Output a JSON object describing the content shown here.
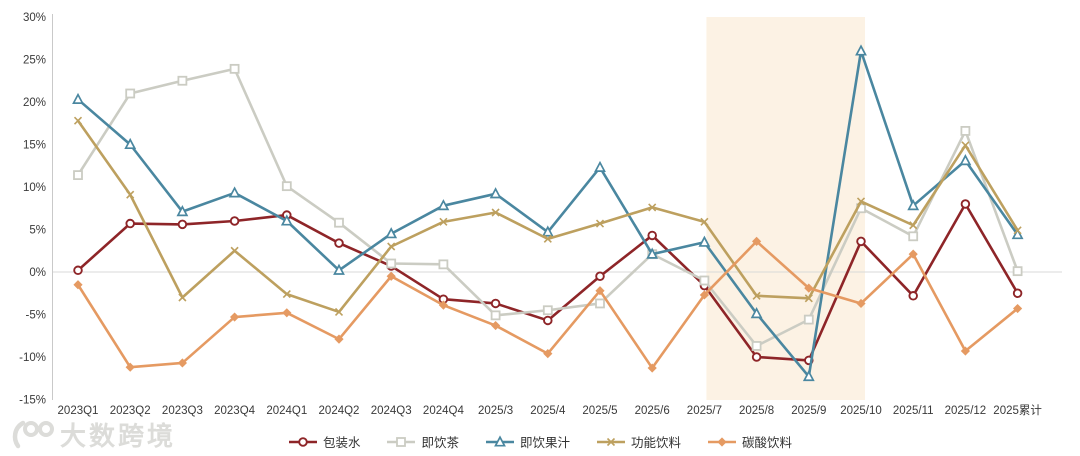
{
  "watermark": {
    "text": "大数跨境"
  },
  "chart_data": {
    "type": "line",
    "title": "",
    "xlabel": "",
    "ylabel": "",
    "grid": "zero-line-only",
    "legend_position": "bottom",
    "categories": [
      "2023Q1",
      "2023Q2",
      "2023Q3",
      "2023Q4",
      "2024Q1",
      "2024Q2",
      "2024Q3",
      "2024Q4",
      "2025/3",
      "2025/4",
      "2025/5",
      "2025/6",
      "2025/7",
      "2025/8",
      "2025/9",
      "2025/10",
      "2025/11",
      "2025/12",
      "2025累计"
    ],
    "y_axis": {
      "min": -15,
      "max": 30,
      "step": 5,
      "ticks": [
        30,
        25,
        20,
        15,
        10,
        5,
        0,
        -5,
        -10,
        -15
      ],
      "tick_suffix": "%"
    },
    "highlight_band": {
      "from": "2025/7",
      "to": "2025/10",
      "color": "#fcf2e4"
    },
    "series": [
      {
        "key": "packaged-water",
        "name": "包装水",
        "color": "#8e2528",
        "marker": "circle",
        "values": [
          0.2,
          5.7,
          5.6,
          6.0,
          6.7,
          3.4,
          0.7,
          -3.2,
          -3.7,
          -5.7,
          -0.5,
          4.3,
          -1.6,
          -10.0,
          -10.4,
          3.6,
          -2.8,
          8.0,
          -2.5
        ]
      },
      {
        "key": "rtd-tea",
        "name": "即饮茶",
        "color": "#cbccc3",
        "marker": "square",
        "values": [
          11.4,
          21.0,
          22.5,
          23.9,
          10.1,
          5.8,
          1.0,
          0.9,
          -5.1,
          -4.5,
          -3.7,
          2.1,
          -1.0,
          -8.7,
          -5.6,
          7.5,
          4.2,
          16.6,
          0.1
        ]
      },
      {
        "key": "rtd-juice",
        "name": "即饮果汁",
        "color": "#4a87a0",
        "marker": "triangle",
        "values": [
          20.3,
          15.0,
          7.1,
          9.3,
          6.0,
          0.2,
          4.5,
          7.8,
          9.2,
          4.7,
          12.3,
          2.1,
          3.5,
          -4.9,
          -12.3,
          26.0,
          7.8,
          13.1,
          4.4
        ]
      },
      {
        "key": "energy-drink",
        "name": "功能饮料",
        "color": "#bda05f",
        "marker": "x",
        "values": [
          17.8,
          9.1,
          -3.0,
          2.5,
          -2.6,
          -4.7,
          3.0,
          5.9,
          7.0,
          3.9,
          5.7,
          7.6,
          5.9,
          -2.8,
          -3.1,
          8.3,
          5.5,
          14.9,
          4.9
        ]
      },
      {
        "key": "carbonated-drink",
        "name": "碳酸饮料",
        "color": "#e59a62",
        "marker": "diamond",
        "values": [
          -1.5,
          -11.2,
          -10.7,
          -5.3,
          -4.8,
          -7.9,
          -0.5,
          -3.9,
          -6.3,
          -9.6,
          -2.2,
          -11.3,
          -2.7,
          3.6,
          -1.9,
          -3.7,
          2.1,
          -9.3,
          -4.3
        ]
      }
    ],
    "colors": {
      "zero_gridline": "#d9d9d9",
      "axis_line": "#c9c9c9",
      "tick_text": "#3a3a3a"
    }
  }
}
